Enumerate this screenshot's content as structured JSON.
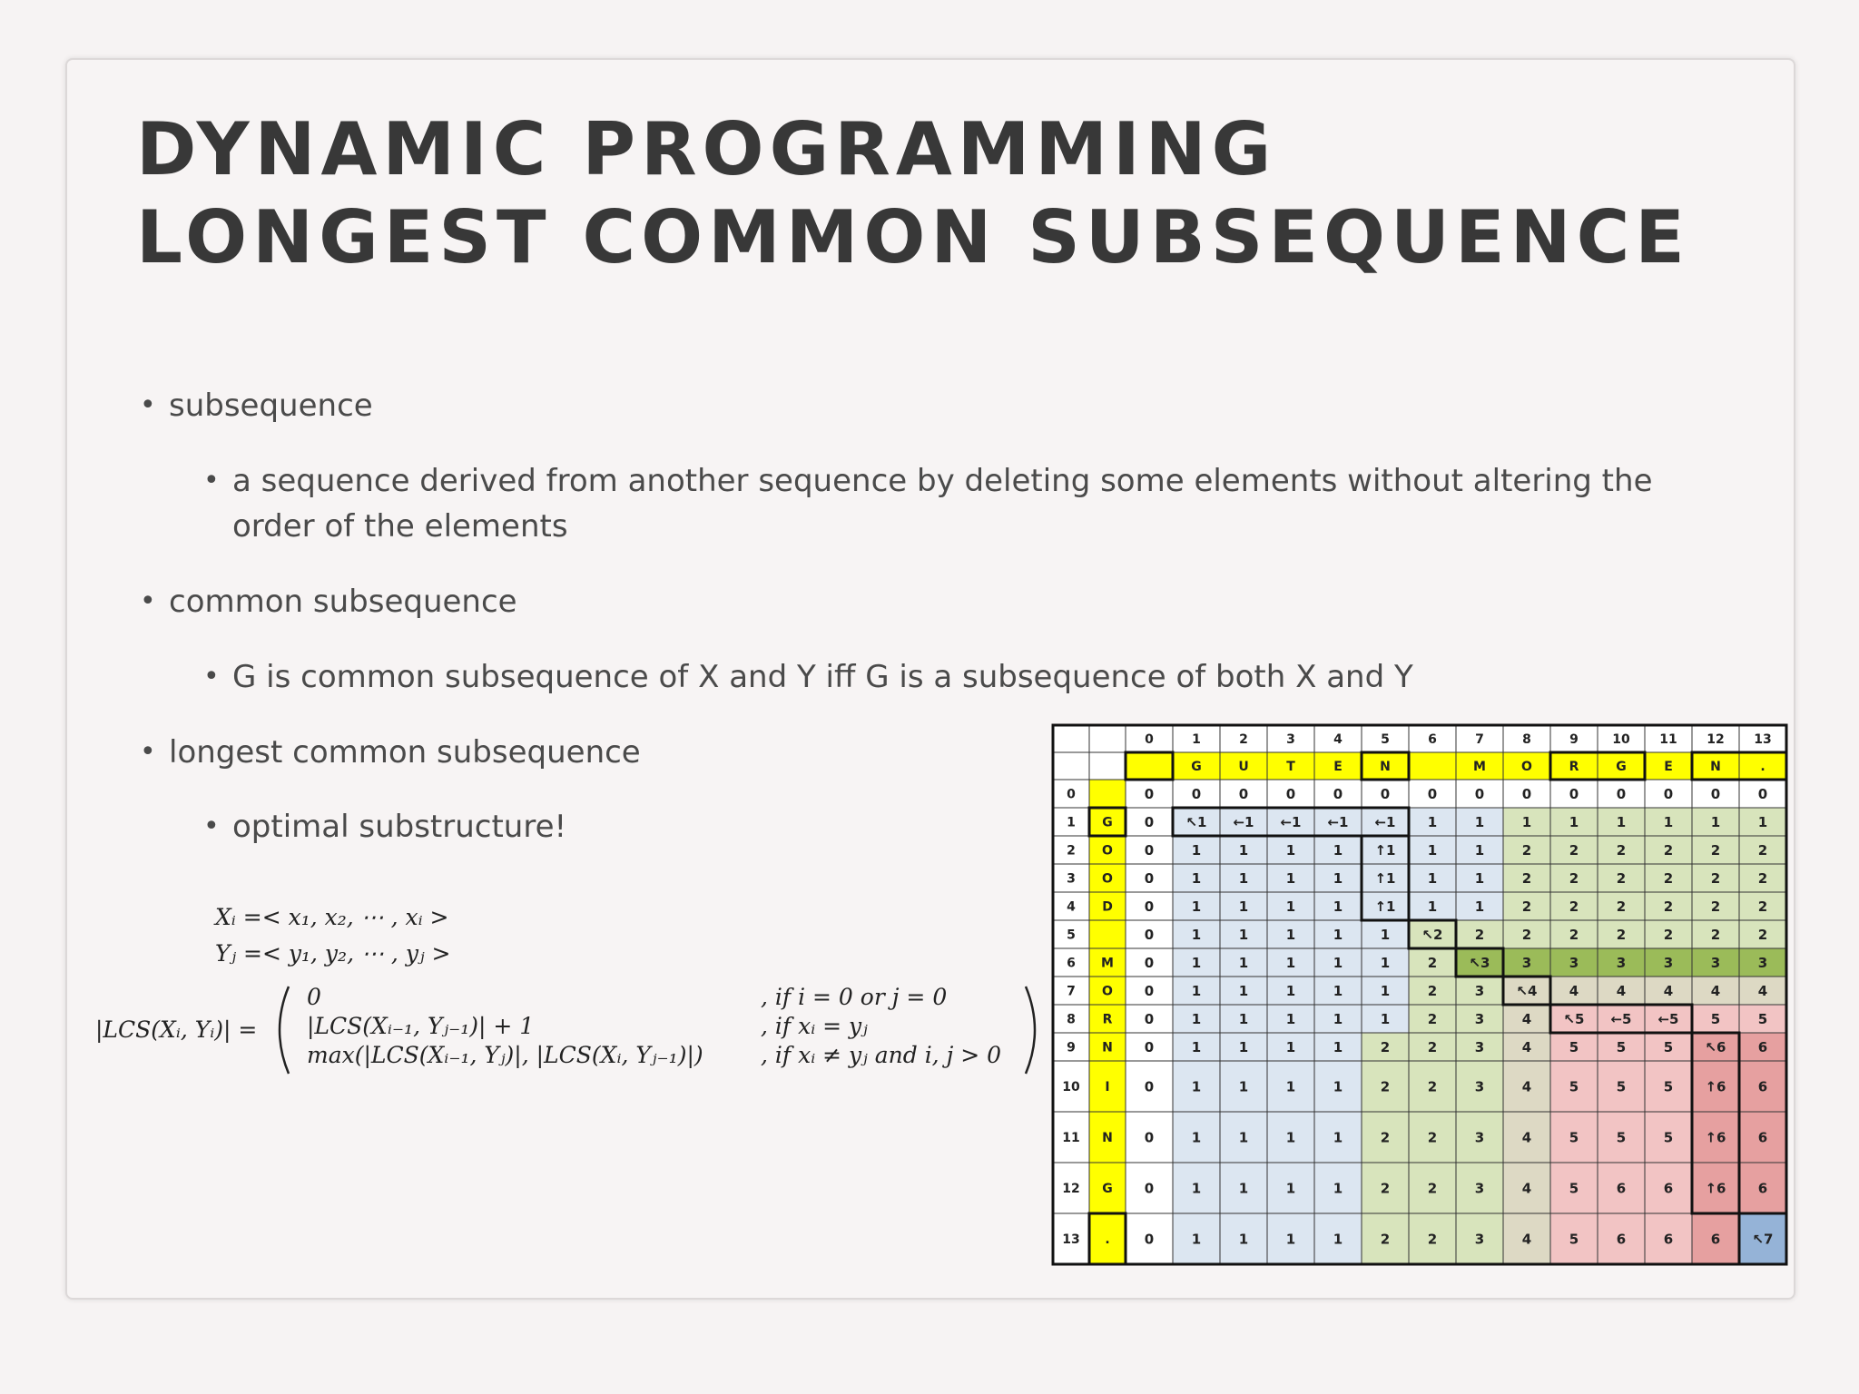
{
  "slide": {
    "title_line1": "DYNAMIC PROGRAMMING",
    "title_line2": "LONGEST COMMON SUBSEQUENCE",
    "bullets": [
      {
        "level": 1,
        "text": "subsequence"
      },
      {
        "level": 2,
        "text": "a sequence derived from another sequence by deleting some elements without altering the"
      },
      {
        "level": 2,
        "text": "order of the elements",
        "continuation": true
      },
      {
        "level": 1,
        "text": "common subsequence"
      },
      {
        "level": 2,
        "text": "G is common subsequence of X and Y iff G is a subsequence of both X and Y"
      },
      {
        "level": 1,
        "text": "longest common subsequence"
      },
      {
        "level": 2,
        "text": "optimal substructure!"
      }
    ],
    "bullet_glyph": "•"
  },
  "formula": {
    "xi": "Xᵢ =< x₁, x₂, ⋯ , xᵢ >",
    "yj": "Yⱼ =< y₁, y₂, ⋯ , yⱼ >",
    "lhs": "|LCS(Xᵢ, Yᵢ)| =",
    "cases": [
      {
        "expr": "0",
        "cond": ", if  i = 0 or j = 0"
      },
      {
        "expr": "|LCS(Xᵢ₋₁, Yⱼ₋₁)| + 1",
        "cond": ", if  xᵢ = yⱼ"
      },
      {
        "expr": "max(|LCS(Xᵢ₋₁, Yⱼ)|, |LCS(Xᵢ, Yⱼ₋₁)|)",
        "cond": ", if  xᵢ ≠ yⱼ and i, j > 0"
      }
    ]
  },
  "lcs_table": {
    "col_indices": [
      "0",
      "1",
      "2",
      "3",
      "4",
      "5",
      "6",
      "7",
      "8",
      "9",
      "10",
      "11",
      "12",
      "13"
    ],
    "col_letters": [
      "",
      "G",
      "U",
      "T",
      "E",
      "N",
      "",
      "M",
      "O",
      "R",
      "G",
      "E",
      "N",
      "."
    ],
    "row_indices": [
      "0",
      "1",
      "2",
      "3",
      "4",
      "5",
      "6",
      "7",
      "8",
      "9",
      "10",
      "11",
      "12",
      "13"
    ],
    "row_letters": [
      "",
      "G",
      "O",
      "O",
      "D",
      "",
      "M",
      "O",
      "R",
      "N",
      "I",
      "N",
      "G",
      "."
    ],
    "cells": [
      [
        "0",
        "0",
        "0",
        "0",
        "0",
        "0",
        "0",
        "0",
        "0",
        "0",
        "0",
        "0",
        "0",
        "0"
      ],
      [
        "0",
        "↖1",
        "←1",
        "←1",
        "←1",
        "←1",
        "1",
        "1",
        "1",
        "1",
        "1",
        "1",
        "1",
        "1"
      ],
      [
        "0",
        "1",
        "1",
        "1",
        "1",
        "↑1",
        "1",
        "1",
        "2",
        "2",
        "2",
        "2",
        "2",
        "2"
      ],
      [
        "0",
        "1",
        "1",
        "1",
        "1",
        "↑1",
        "1",
        "1",
        "2",
        "2",
        "2",
        "2",
        "2",
        "2"
      ],
      [
        "0",
        "1",
        "1",
        "1",
        "1",
        "↑1",
        "1",
        "1",
        "2",
        "2",
        "2",
        "2",
        "2",
        "2"
      ],
      [
        "0",
        "1",
        "1",
        "1",
        "1",
        "1",
        "↖2",
        "2",
        "2",
        "2",
        "2",
        "2",
        "2",
        "2"
      ],
      [
        "0",
        "1",
        "1",
        "1",
        "1",
        "1",
        "2",
        "↖3",
        "3",
        "3",
        "3",
        "3",
        "3",
        "3"
      ],
      [
        "0",
        "1",
        "1",
        "1",
        "1",
        "1",
        "2",
        "3",
        "↖4",
        "4",
        "4",
        "4",
        "4",
        "4"
      ],
      [
        "0",
        "1",
        "1",
        "1",
        "1",
        "1",
        "2",
        "3",
        "4",
        "↖5",
        "←5",
        "←5",
        "5",
        "5"
      ],
      [
        "0",
        "1",
        "1",
        "1",
        "1",
        "2",
        "2",
        "3",
        "4",
        "5",
        "5",
        "5",
        "↖6",
        "6"
      ],
      [
        "0",
        "1",
        "1",
        "1",
        "1",
        "2",
        "2",
        "3",
        "4",
        "5",
        "5",
        "5",
        "↑6",
        "6"
      ],
      [
        "0",
        "1",
        "1",
        "1",
        "1",
        "2",
        "2",
        "3",
        "4",
        "5",
        "5",
        "5",
        "↑6",
        "6"
      ],
      [
        "0",
        "1",
        "1",
        "1",
        "1",
        "2",
        "2",
        "3",
        "4",
        "5",
        "6",
        "6",
        "↑6",
        "6"
      ],
      [
        "0",
        "1",
        "1",
        "1",
        "1",
        "2",
        "2",
        "3",
        "4",
        "5",
        "6",
        "6",
        "6",
        "↖7"
      ]
    ],
    "colors": {
      "header_yellow": "#ffff00",
      "white": "#ffffff",
      "blue": "#dce6f1",
      "green": "#d8e4bc",
      "green_dark": "#9bbb59",
      "tan": "#ddd9c4",
      "pink": "#f2c4c4",
      "red": "#e6a0a0",
      "final_blue": "#95b3d7"
    }
  }
}
